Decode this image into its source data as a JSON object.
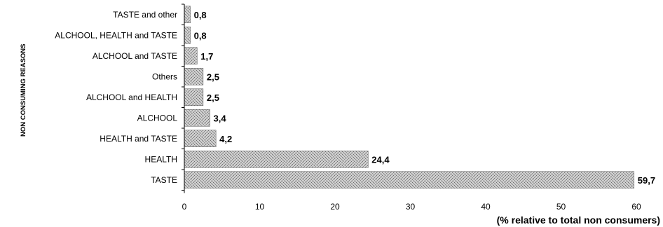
{
  "chart_data": {
    "type": "bar",
    "orientation": "horizontal",
    "categories": [
      "TASTE and other",
      "ALCHOOL, HEALTH and TASTE",
      "ALCHOOL and TASTE",
      "Others",
      "ALCHOOL and HEALTH",
      "ALCHOOL",
      "HEALTH and TASTE",
      "HEALTH",
      "TASTE"
    ],
    "values": [
      0.8,
      0.8,
      1.7,
      2.5,
      2.5,
      3.4,
      4.2,
      24.4,
      59.7
    ],
    "value_labels": [
      "0,8",
      "0,8",
      "1,7",
      "2,5",
      "2,5",
      "3,4",
      "4,2",
      "24,4",
      "59,7"
    ],
    "xlabel": "(% relative to total non consumers)",
    "ylabel": "NON CONSUMING REASONS",
    "xlim": [
      0,
      60
    ],
    "xticks": [
      0,
      10,
      20,
      30,
      40,
      50,
      60
    ],
    "grid": false,
    "bar_color": "#b8b8b8"
  }
}
